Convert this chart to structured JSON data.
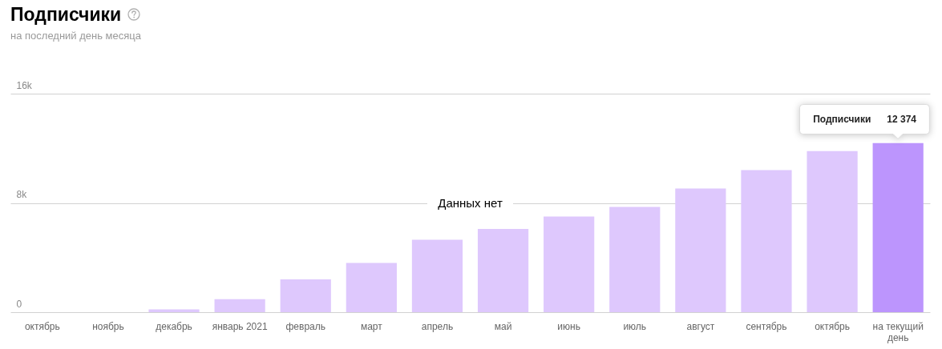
{
  "chart_data": {
    "type": "bar",
    "title": "Подписчики",
    "subtitle": "на последний день месяца",
    "categories": [
      "октябрь",
      "ноябрь",
      "декабрь",
      "январь 2021",
      "февраль",
      "март",
      "апрель",
      "май",
      "июнь",
      "июль",
      "август",
      "сентябрь",
      "октябрь",
      "на текущий день"
    ],
    "series": [
      {
        "name": "Подписчики",
        "colors": [
          null,
          null,
          "#dec8fd",
          "#dec8fd",
          "#dec8fd",
          "#dec8fd",
          "#dec8fd",
          "#dec8fd",
          "#dec8fd",
          "#dec8fd",
          "#dec8fd",
          "#dec8fd",
          "#dec8fd",
          "#bc95fd"
        ],
        "values": [
          null,
          null,
          200,
          950,
          2400,
          3600,
          5300,
          6100,
          7000,
          7700,
          9050,
          10400,
          11800,
          12374
        ],
        "value_labels": [
          null,
          null,
          null,
          null,
          null,
          null,
          null,
          null,
          null,
          null,
          null,
          null,
          null,
          "12 374"
        ]
      }
    ],
    "ylim": [
      0,
      16000
    ],
    "yticks": [
      0,
      {
        "value": 8000,
        "label": "8k"
      },
      {
        "value": 16000,
        "label": "16k"
      }
    ],
    "grid": "y",
    "annotations": [
      "Данных нет"
    ]
  }
}
